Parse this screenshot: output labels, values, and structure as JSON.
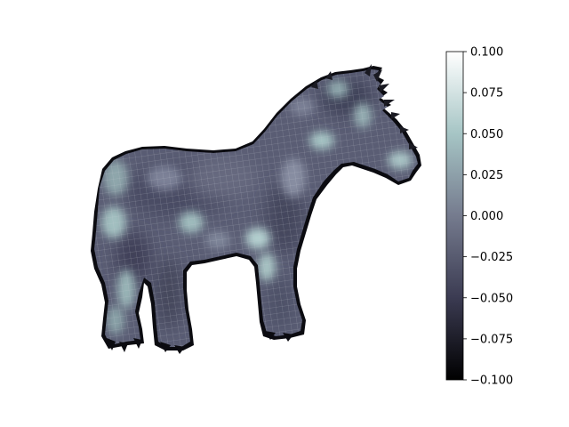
{
  "chart_data": {
    "type": "heatmap",
    "title": "",
    "description_visible": "3D surface mesh of a horse shape colored by a scalar value",
    "colormap": "bone",
    "colorbar": {
      "vmin": -0.1,
      "vmax": 0.1,
      "ticks": [
        0.1,
        0.075,
        0.05,
        0.025,
        0.0,
        -0.025,
        -0.05,
        -0.075,
        -0.1
      ],
      "tick_labels": [
        "0.100",
        "0.075",
        "0.050",
        "0.025",
        "0.000",
        "−0.025",
        "−0.050",
        "−0.075",
        "−0.100"
      ],
      "orientation": "vertical",
      "placement": "right"
    },
    "axes_visible": false,
    "colors": {
      "bone_0": "#000000",
      "bone_25": "#3c3c53",
      "bone_50": "#777f8e",
      "bone_75": "#a6c5c5",
      "bone_100": "#ffffff"
    }
  }
}
